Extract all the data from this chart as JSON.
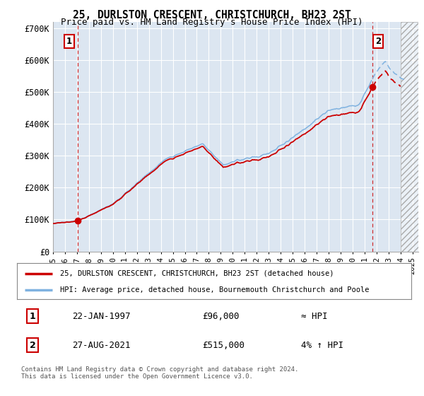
{
  "title1": "25, DURLSTON CRESCENT, CHRISTCHURCH, BH23 2ST",
  "title2": "Price paid vs. HM Land Registry's House Price Index (HPI)",
  "background_color": "#dce6f0",
  "plot_bg_color": "#dce6f1",
  "hpi_color": "#7fb2e0",
  "price_color": "#cc0000",
  "ylabel_values": [
    0,
    100000,
    200000,
    300000,
    400000,
    500000,
    600000,
    700000
  ],
  "ylabel_labels": [
    "£0",
    "£100K",
    "£200K",
    "£300K",
    "£400K",
    "£500K",
    "£600K",
    "£700K"
  ],
  "xmin": 1995.0,
  "xmax": 2025.5,
  "ymin": 0,
  "ymax": 720000,
  "sale1_x": 1997.056,
  "sale1_y": 96000,
  "sale1_label": "1",
  "sale1_date": "22-JAN-1997",
  "sale1_price": "£96,000",
  "sale1_hpi": "≈ HPI",
  "sale2_x": 2021.653,
  "sale2_y": 515000,
  "sale2_label": "2",
  "sale2_date": "27-AUG-2021",
  "sale2_price": "£515,000",
  "sale2_hpi": "4% ↑ HPI",
  "legend_line1": "25, DURLSTON CRESCENT, CHRISTCHURCH, BH23 2ST (detached house)",
  "legend_line2": "HPI: Average price, detached house, Bournemouth Christchurch and Poole",
  "footer": "Contains HM Land Registry data © Crown copyright and database right 2024.\nThis data is licensed under the Open Government Licence v3.0.",
  "xticks": [
    1995,
    1996,
    1997,
    1998,
    1999,
    2000,
    2001,
    2002,
    2003,
    2004,
    2005,
    2006,
    2007,
    2008,
    2009,
    2010,
    2011,
    2012,
    2013,
    2014,
    2015,
    2016,
    2017,
    2018,
    2019,
    2020,
    2021,
    2022,
    2023,
    2024,
    2025
  ]
}
